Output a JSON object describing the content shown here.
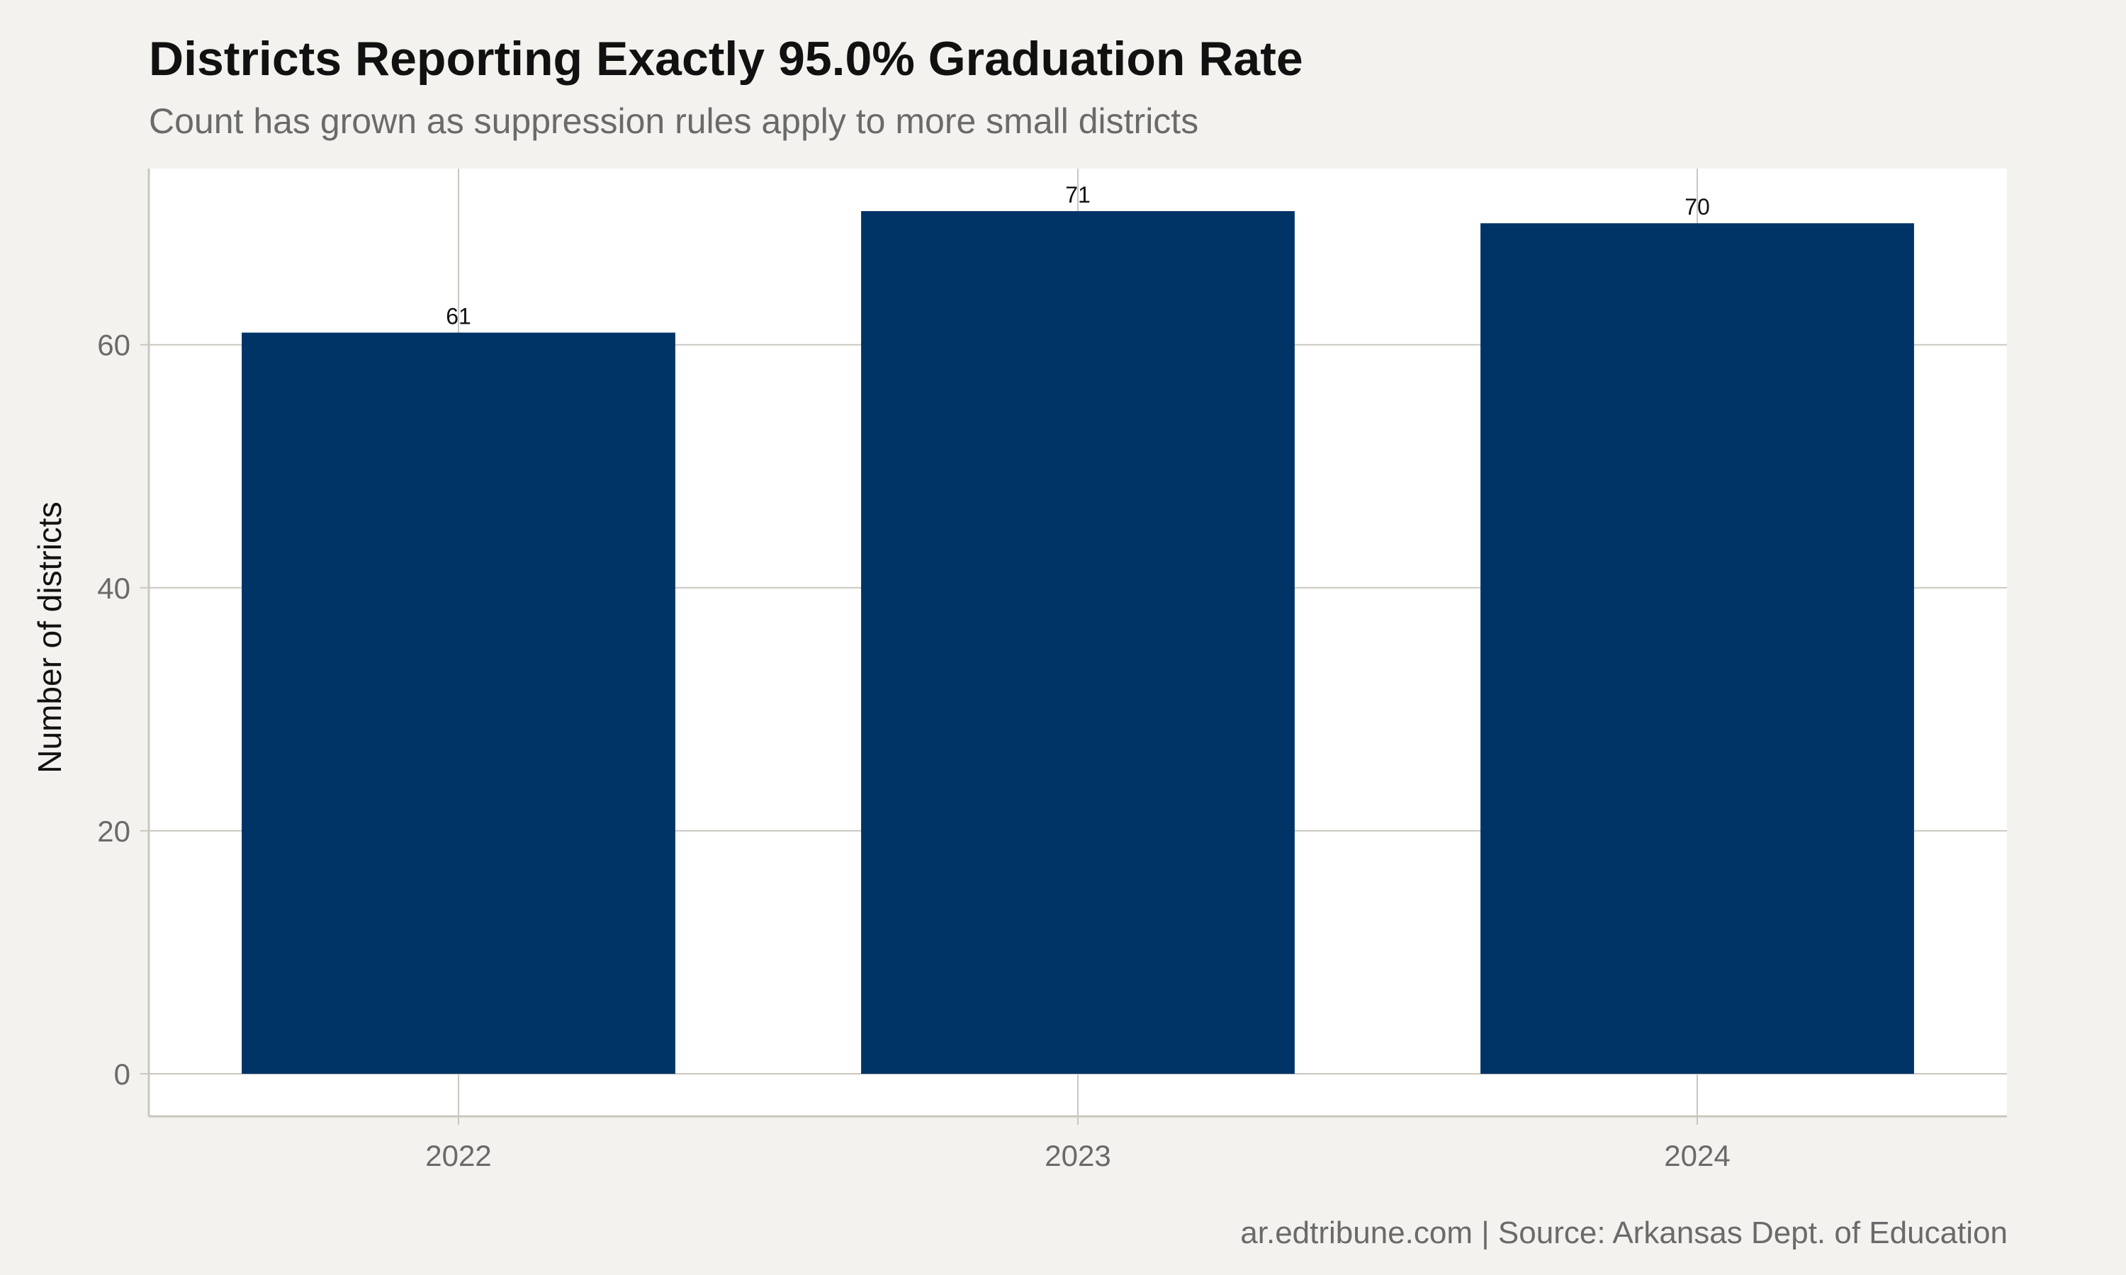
{
  "header": {
    "title": "Districts Reporting Exactly 95.0% Graduation Rate",
    "subtitle": "Count has grown as suppression rules apply to more small districts"
  },
  "footer": {
    "caption": "ar.edtribune.com | Source: Arkansas Dept. of Education"
  },
  "colors": {
    "background": "#f4f2ee",
    "panel": "#ffffff",
    "bar": "#003366",
    "grid": "#c9c7bf"
  },
  "chart_data": {
    "type": "bar",
    "title": "Districts Reporting Exactly 95.0% Graduation Rate",
    "subtitle": "Count has grown as suppression rules apply to more small districts",
    "xlabel": "",
    "ylabel": "Number of districts",
    "categories": [
      "2022",
      "2023",
      "2024"
    ],
    "values": [
      61,
      71,
      70
    ],
    "data_labels": [
      "61",
      "71",
      "70"
    ],
    "ylim": [
      -3.5,
      74.5
    ],
    "yticks": [
      0,
      20,
      40,
      60
    ],
    "ytick_labels": [
      "0",
      "20",
      "40",
      "60"
    ],
    "grid": true,
    "legend": "none"
  }
}
